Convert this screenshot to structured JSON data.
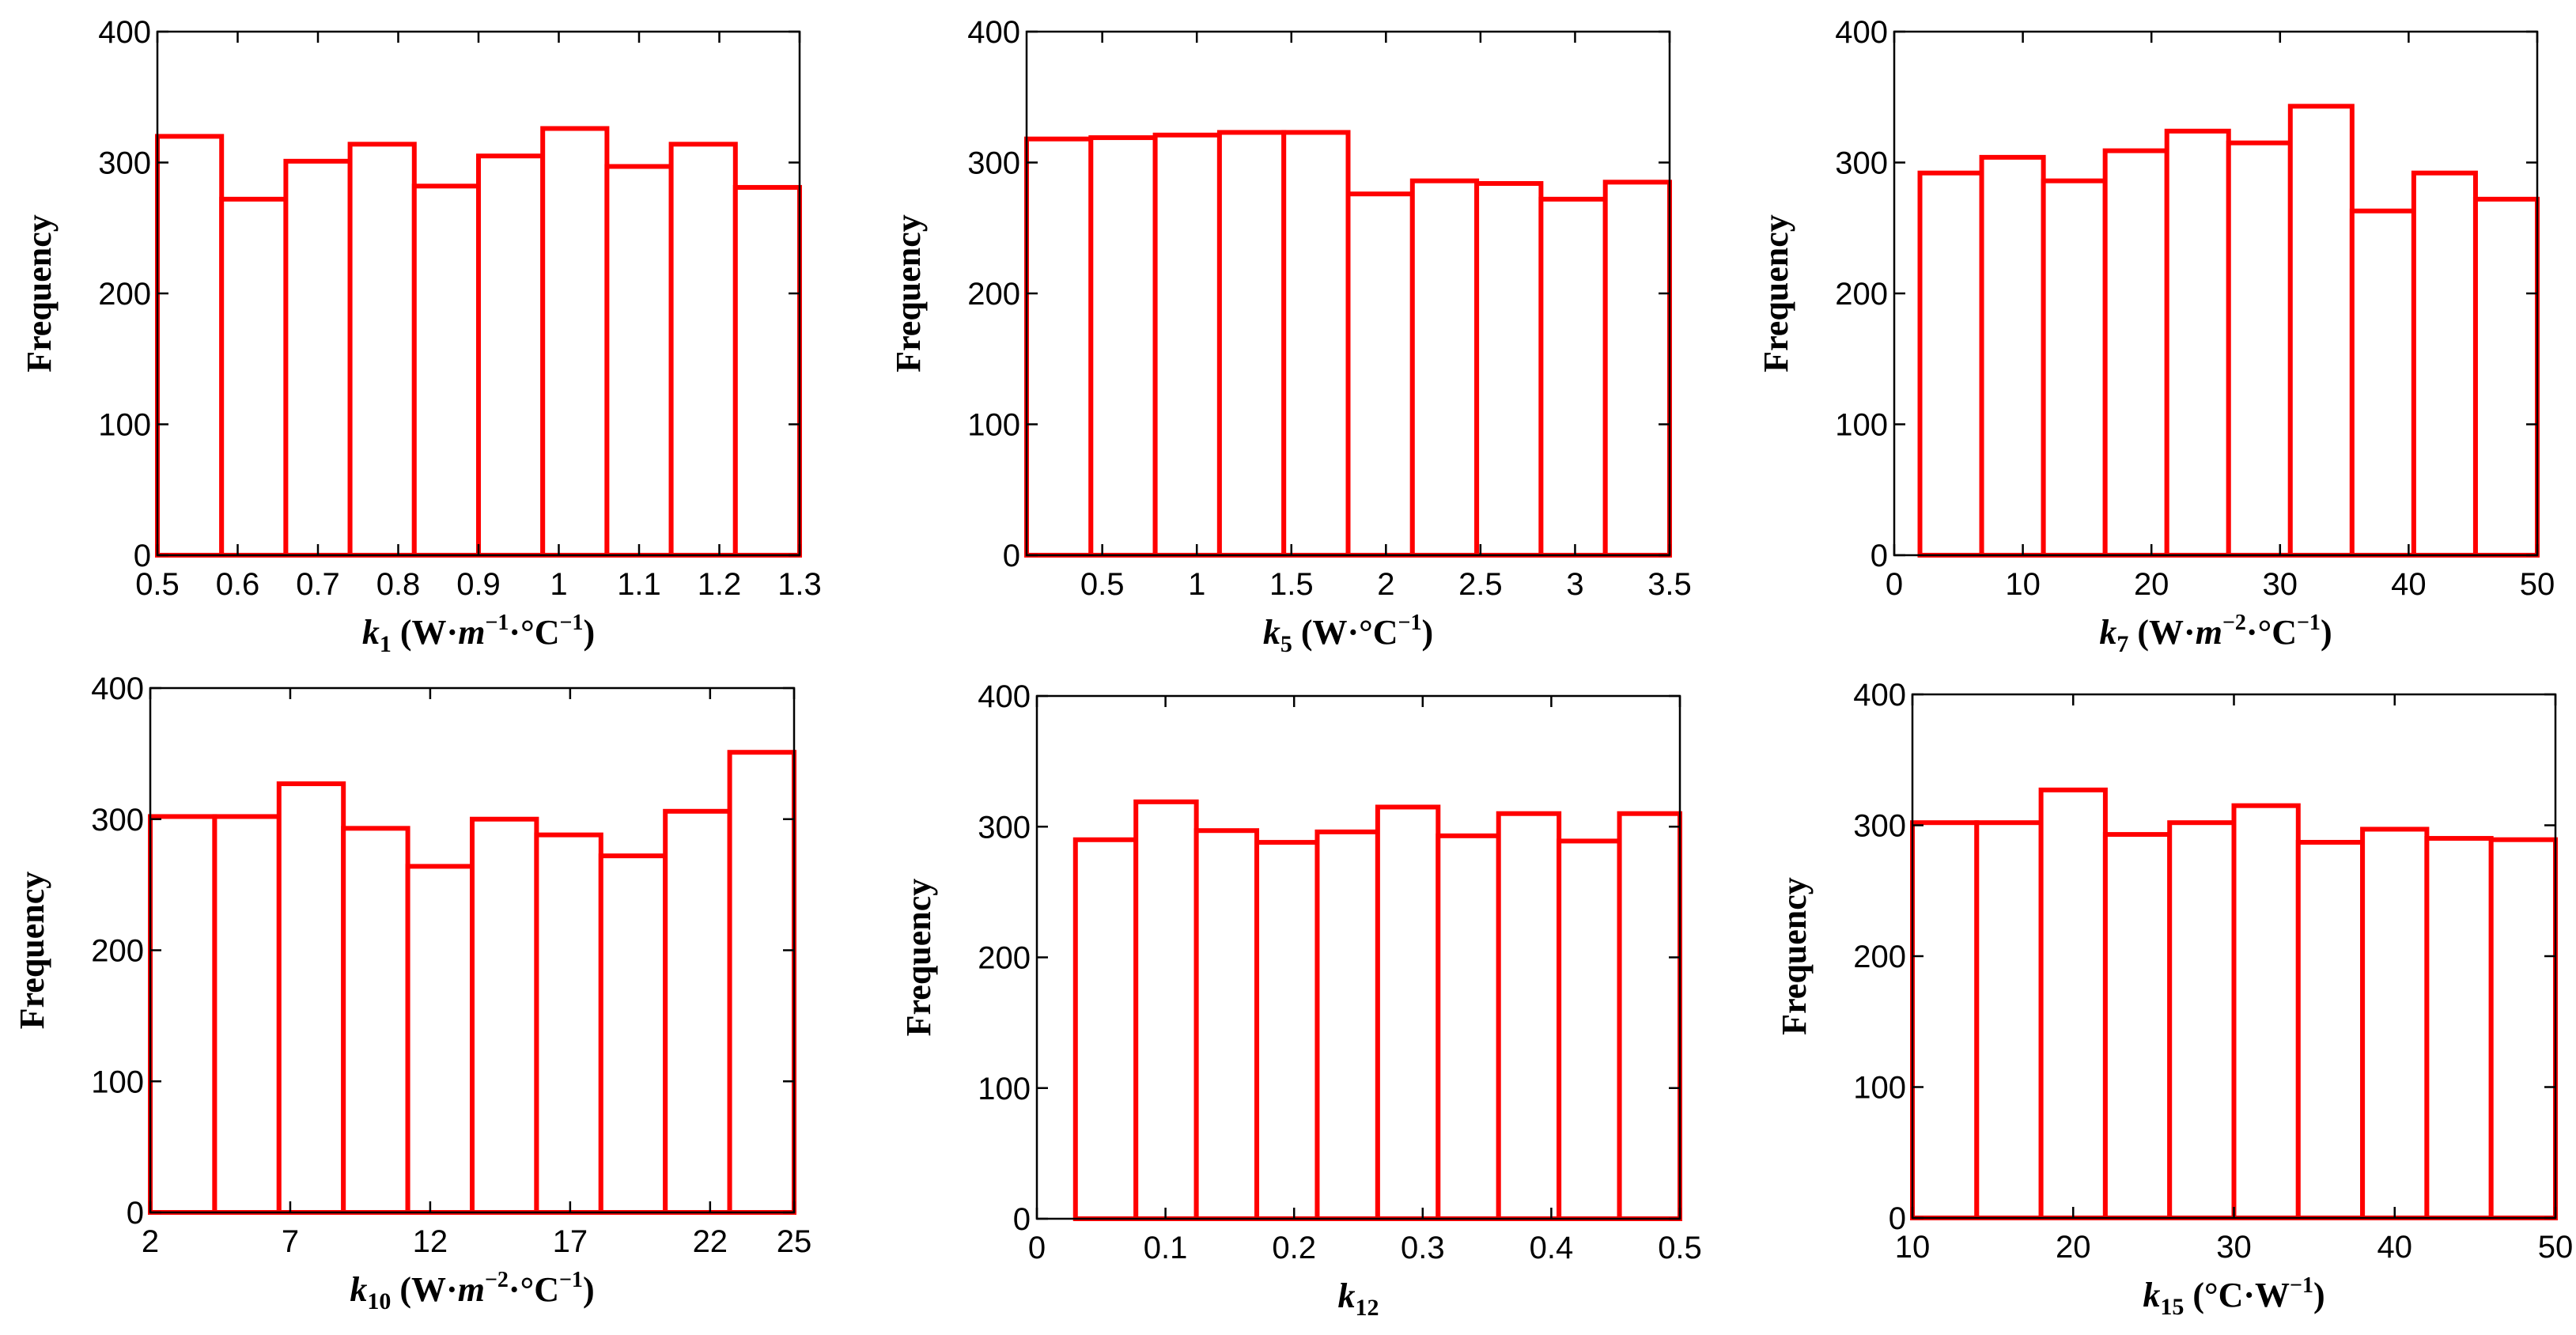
{
  "chart_data": [
    {
      "type": "bar",
      "title": "",
      "ylabel": "Frequency",
      "xlabel_parts": [
        {
          "text": "k",
          "italic": true
        },
        {
          "text": "1",
          "sub": true
        },
        {
          "text": " (W·"
        },
        {
          "text": "m",
          "italic": true
        },
        {
          "text": "−1",
          "sup": true
        },
        {
          "text": "·°C"
        },
        {
          "text": "−1",
          "sup": true
        },
        {
          "text": ")"
        }
      ],
      "xlim": [
        0.5,
        1.3
      ],
      "ylim": [
        0,
        400
      ],
      "xticks": [
        0.5,
        0.6,
        0.7,
        0.8,
        0.9,
        1,
        1.1,
        1.2,
        1.3
      ],
      "xtick_labels": [
        "0.5",
        "0.6",
        "0.7",
        "0.8",
        "0.9",
        "1",
        "1.1",
        "1.2",
        "1.3"
      ],
      "yticks": [
        0,
        100,
        200,
        300,
        400
      ],
      "ytick_labels": [
        "0",
        "100",
        "200",
        "300",
        "400"
      ],
      "bin_edges": [
        0.5,
        0.58,
        0.66,
        0.74,
        0.82,
        0.9,
        0.98,
        1.06,
        1.14,
        1.22,
        1.3
      ],
      "values": [
        320,
        272,
        301,
        314,
        282,
        305,
        326,
        297,
        314,
        281
      ]
    },
    {
      "type": "bar",
      "title": "",
      "ylabel": "Frequency",
      "xlabel_parts": [
        {
          "text": "k",
          "italic": true
        },
        {
          "text": "5",
          "sub": true
        },
        {
          "text": " (W·°C"
        },
        {
          "text": "−1",
          "sup": true
        },
        {
          "text": ")"
        }
      ],
      "xlim": [
        0.1,
        3.5
      ],
      "ylim": [
        0,
        400
      ],
      "xticks": [
        0.5,
        1,
        1.5,
        2,
        2.5,
        3,
        3.5
      ],
      "xtick_labels": [
        "0.5",
        "1",
        "1.5",
        "2",
        "2.5",
        "3",
        "3.5"
      ],
      "yticks": [
        0,
        100,
        200,
        300,
        400
      ],
      "ytick_labels": [
        "0",
        "100",
        "200",
        "300",
        "400"
      ],
      "bin_edges": [
        0.1,
        0.44,
        0.78,
        1.12,
        1.46,
        1.8,
        2.14,
        2.48,
        2.82,
        3.16,
        3.5
      ],
      "values": [
        318,
        319,
        321,
        323,
        323,
        276,
        286,
        284,
        272,
        285
      ]
    },
    {
      "type": "bar",
      "title": "",
      "ylabel": "Frequency",
      "xlabel_parts": [
        {
          "text": "k",
          "italic": true
        },
        {
          "text": "7",
          "sub": true
        },
        {
          "text": " (W·"
        },
        {
          "text": "m",
          "italic": true
        },
        {
          "text": "−2",
          "sup": true
        },
        {
          "text": "·°C"
        },
        {
          "text": "−1",
          "sup": true
        },
        {
          "text": ")"
        }
      ],
      "xlim": [
        0,
        50
      ],
      "ylim": [
        0,
        400
      ],
      "xticks": [
        0,
        10,
        20,
        30,
        40,
        50
      ],
      "xtick_labels": [
        "0",
        "10",
        "20",
        "30",
        "40",
        "50"
      ],
      "yticks": [
        0,
        100,
        200,
        300,
        400
      ],
      "ytick_labels": [
        "0",
        "100",
        "200",
        "300",
        "400"
      ],
      "bin_edges": [
        2,
        6.8,
        11.6,
        16.4,
        21.2,
        26,
        30.8,
        35.6,
        40.4,
        45.2,
        50
      ],
      "values": [
        292,
        304,
        286,
        309,
        324,
        315,
        343,
        263,
        292,
        272
      ]
    },
    {
      "type": "bar",
      "title": "",
      "ylabel": "Frequency",
      "xlabel_parts": [
        {
          "text": "k",
          "italic": true
        },
        {
          "text": "10",
          "sub": true
        },
        {
          "text": " (W·"
        },
        {
          "text": "m",
          "italic": true
        },
        {
          "text": "−2",
          "sup": true
        },
        {
          "text": "·°C"
        },
        {
          "text": "−1",
          "sup": true
        },
        {
          "text": ")"
        }
      ],
      "xlim": [
        2,
        25
      ],
      "ylim": [
        0,
        400
      ],
      "xticks": [
        2,
        7,
        12,
        17,
        22,
        25
      ],
      "xtick_labels": [
        "2",
        "7",
        "12",
        "17",
        "22",
        "25"
      ],
      "yticks": [
        0,
        100,
        200,
        300,
        400
      ],
      "ytick_labels": [
        "0",
        "100",
        "200",
        "300",
        "400"
      ],
      "bin_edges": [
        2,
        4.3,
        6.6,
        8.9,
        11.2,
        13.5,
        15.8,
        18.1,
        20.4,
        22.7,
        25
      ],
      "values": [
        302,
        302,
        327,
        293,
        264,
        300,
        288,
        272,
        306,
        351
      ]
    },
    {
      "type": "bar",
      "title": "",
      "ylabel": "Frequency",
      "xlabel_parts": [
        {
          "text": "k",
          "italic": true
        },
        {
          "text": "12",
          "sub": true
        }
      ],
      "xlim": [
        0,
        0.5
      ],
      "ylim": [
        0,
        400
      ],
      "xticks": [
        0,
        0.1,
        0.2,
        0.3,
        0.4,
        0.5
      ],
      "xtick_labels": [
        "0",
        "0.1",
        "0.2",
        "0.3",
        "0.4",
        "0.5"
      ],
      "yticks": [
        0,
        100,
        200,
        300,
        400
      ],
      "ytick_labels": [
        "0",
        "100",
        "200",
        "300",
        "400"
      ],
      "bin_edges": [
        0.03,
        0.077,
        0.124,
        0.171,
        0.218,
        0.265,
        0.312,
        0.359,
        0.406,
        0.453,
        0.5
      ],
      "values": [
        290,
        319,
        297,
        288,
        296,
        315,
        293,
        310,
        289,
        310
      ]
    },
    {
      "type": "bar",
      "title": "",
      "ylabel": "Frequency",
      "xlabel_parts": [
        {
          "text": "k",
          "italic": true
        },
        {
          "text": "15",
          "sub": true
        },
        {
          "text": " (°C·W"
        },
        {
          "text": "−1",
          "sup": true
        },
        {
          "text": ")"
        }
      ],
      "xlim": [
        10,
        50
      ],
      "ylim": [
        0,
        400
      ],
      "xticks": [
        10,
        20,
        30,
        40,
        50
      ],
      "xtick_labels": [
        "10",
        "20",
        "30",
        "40",
        "50"
      ],
      "yticks": [
        0,
        100,
        200,
        300,
        400
      ],
      "ytick_labels": [
        "0",
        "100",
        "200",
        "300",
        "400"
      ],
      "bin_edges": [
        10,
        14,
        18,
        22,
        26,
        30,
        34,
        38,
        42,
        46,
        50
      ],
      "values": [
        302,
        302,
        327,
        293,
        302,
        315,
        287,
        297,
        290,
        289
      ]
    }
  ]
}
